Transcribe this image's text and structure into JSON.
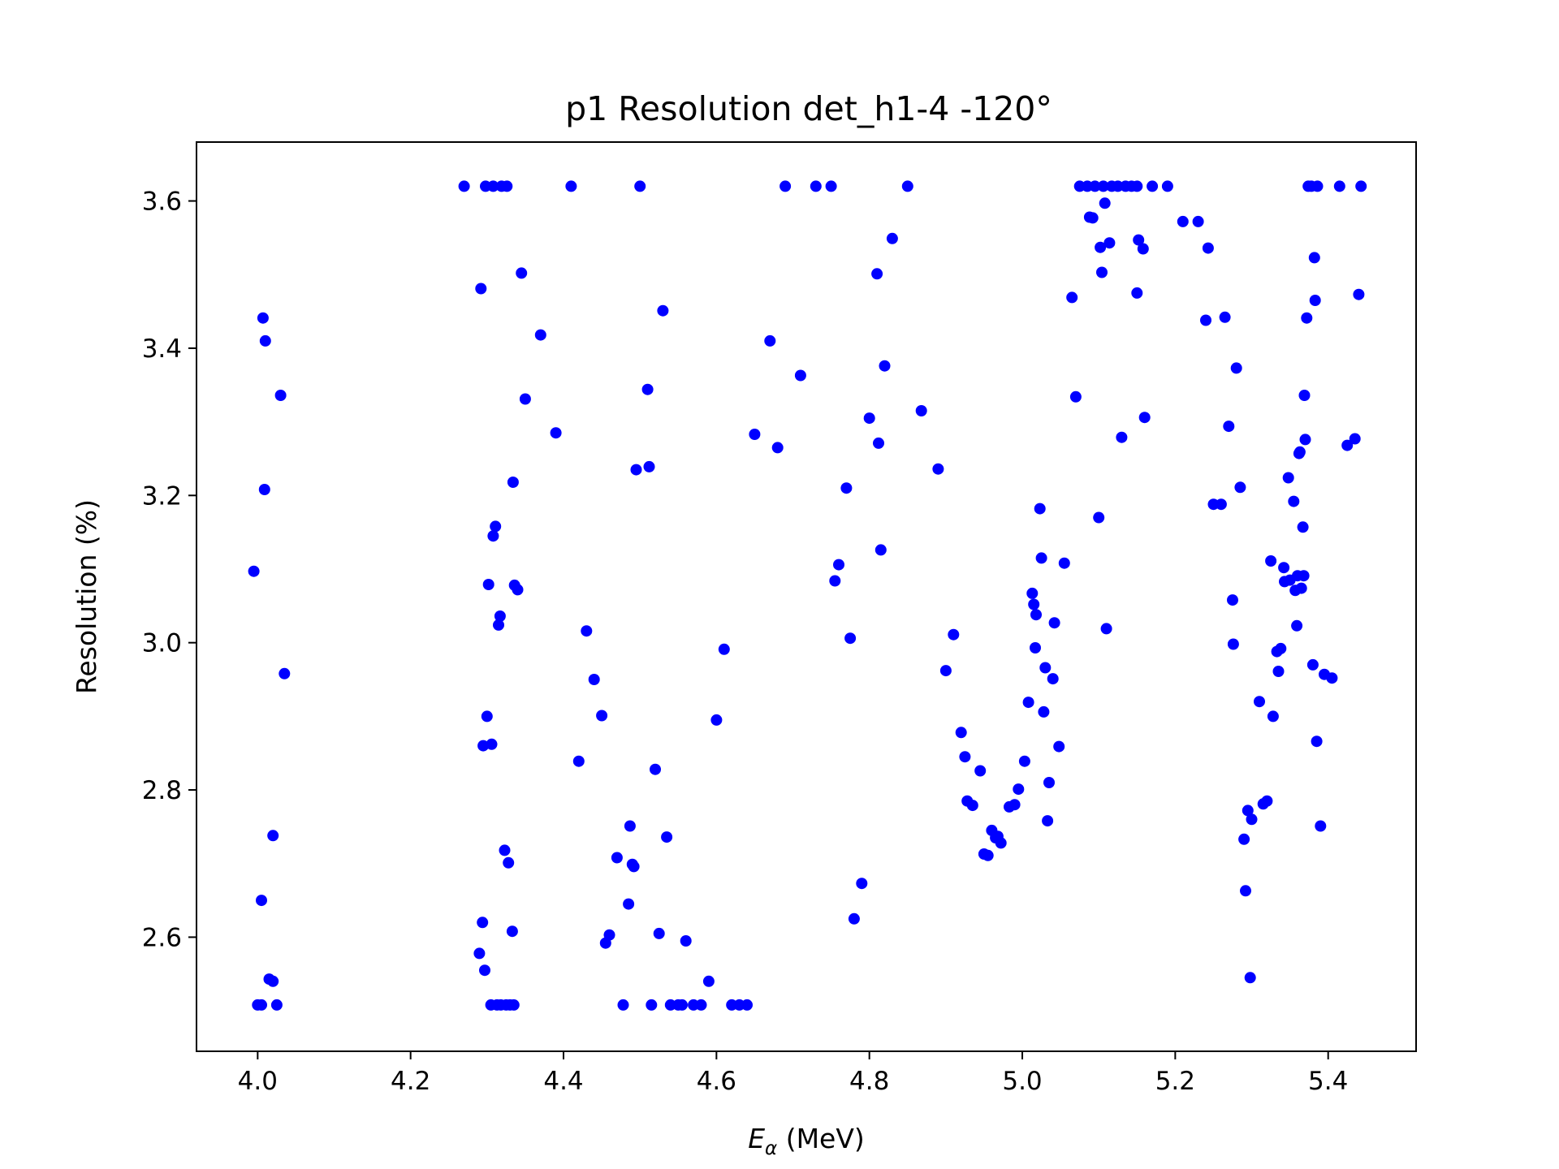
{
  "chart_data": {
    "type": "scatter",
    "title": "p1 Resolution det_h1-4    -120°",
    "xlabel": "E",
    "xlabel_sub": "α",
    "xlabel_unit": " (MeV)",
    "ylabel": "Resolution (%)",
    "xlim": [
      3.92,
      5.515
    ],
    "ylim": [
      2.445,
      3.68
    ],
    "xticks": [
      4.0,
      4.2,
      4.4,
      4.6,
      4.8,
      5.0,
      5.2,
      5.4
    ],
    "xtick_labels": [
      "4.0",
      "4.2",
      "4.4",
      "4.6",
      "4.8",
      "5.0",
      "5.2",
      "5.4"
    ],
    "yticks": [
      2.6,
      2.8,
      3.0,
      3.2,
      3.4,
      3.6
    ],
    "ytick_labels": [
      "2.6",
      "2.8",
      "3.0",
      "3.2",
      "3.4",
      "3.6"
    ],
    "grid": false,
    "marker_color": "#0000ff",
    "series": [
      {
        "points": [
          [
            3.995,
            3.097
          ],
          [
            4.0,
            2.508
          ],
          [
            4.005,
            2.508
          ],
          [
            4.005,
            2.65
          ],
          [
            4.007,
            3.441
          ],
          [
            4.009,
            3.208
          ],
          [
            4.01,
            3.41
          ],
          [
            4.015,
            2.543
          ],
          [
            4.02,
            2.54
          ],
          [
            4.02,
            2.738
          ],
          [
            4.025,
            2.508
          ],
          [
            4.03,
            3.336
          ],
          [
            4.035,
            2.958
          ],
          [
            4.27,
            3.62
          ],
          [
            4.29,
            2.578
          ],
          [
            4.292,
            3.481
          ],
          [
            4.294,
            2.62
          ],
          [
            4.295,
            2.86
          ],
          [
            4.297,
            2.555
          ],
          [
            4.298,
            3.62
          ],
          [
            4.3,
            2.9
          ],
          [
            4.302,
            3.079
          ],
          [
            4.305,
            2.508
          ],
          [
            4.306,
            2.862
          ],
          [
            4.308,
            3.145
          ],
          [
            4.308,
            3.62
          ],
          [
            4.311,
            3.158
          ],
          [
            4.313,
            2.508
          ],
          [
            4.315,
            3.024
          ],
          [
            4.317,
            3.036
          ],
          [
            4.318,
            2.508
          ],
          [
            4.319,
            3.62
          ],
          [
            4.323,
            2.718
          ],
          [
            4.325,
            2.508
          ],
          [
            4.326,
            3.62
          ],
          [
            4.328,
            2.701
          ],
          [
            4.33,
            2.508
          ],
          [
            4.333,
            2.608
          ],
          [
            4.334,
            3.218
          ],
          [
            4.335,
            2.508
          ],
          [
            4.336,
            3.078
          ],
          [
            4.34,
            3.072
          ],
          [
            4.345,
            3.502
          ],
          [
            4.35,
            3.331
          ],
          [
            4.37,
            3.418
          ],
          [
            4.39,
            3.285
          ],
          [
            4.41,
            3.62
          ],
          [
            4.42,
            2.839
          ],
          [
            4.43,
            3.016
          ],
          [
            4.44,
            2.95
          ],
          [
            4.45,
            2.901
          ],
          [
            4.455,
            2.592
          ],
          [
            4.46,
            2.603
          ],
          [
            4.47,
            2.708
          ],
          [
            4.478,
            2.508
          ],
          [
            4.485,
            2.645
          ],
          [
            4.487,
            2.751
          ],
          [
            4.49,
            2.699
          ],
          [
            4.492,
            2.696
          ],
          [
            4.495,
            3.235
          ],
          [
            4.5,
            3.62
          ],
          [
            4.51,
            3.344
          ],
          [
            4.512,
            3.239
          ],
          [
            4.515,
            2.508
          ],
          [
            4.52,
            2.828
          ],
          [
            4.525,
            2.605
          ],
          [
            4.53,
            3.451
          ],
          [
            4.535,
            2.736
          ],
          [
            4.54,
            2.508
          ],
          [
            4.55,
            2.508
          ],
          [
            4.555,
            2.508
          ],
          [
            4.56,
            2.595
          ],
          [
            4.57,
            2.508
          ],
          [
            4.58,
            2.508
          ],
          [
            4.59,
            2.54
          ],
          [
            4.6,
            2.895
          ],
          [
            4.61,
            2.991
          ],
          [
            4.62,
            2.508
          ],
          [
            4.63,
            2.508
          ],
          [
            4.64,
            2.508
          ],
          [
            4.65,
            3.283
          ],
          [
            4.67,
            3.41
          ],
          [
            4.68,
            3.265
          ],
          [
            4.69,
            3.62
          ],
          [
            4.71,
            3.363
          ],
          [
            4.73,
            3.62
          ],
          [
            4.75,
            3.62
          ],
          [
            4.755,
            3.084
          ],
          [
            4.76,
            3.106
          ],
          [
            4.77,
            3.21
          ],
          [
            4.775,
            3.006
          ],
          [
            4.78,
            2.625
          ],
          [
            4.79,
            2.673
          ],
          [
            4.8,
            3.305
          ],
          [
            4.81,
            3.501
          ],
          [
            4.812,
            3.271
          ],
          [
            4.815,
            3.126
          ],
          [
            4.82,
            3.376
          ],
          [
            4.83,
            3.549
          ],
          [
            4.85,
            3.62
          ],
          [
            4.868,
            3.315
          ],
          [
            4.89,
            3.236
          ],
          [
            4.9,
            2.962
          ],
          [
            4.91,
            3.011
          ],
          [
            4.92,
            2.878
          ],
          [
            4.925,
            2.845
          ],
          [
            4.928,
            2.785
          ],
          [
            4.935,
            2.779
          ],
          [
            4.945,
            2.826
          ],
          [
            4.95,
            2.713
          ],
          [
            4.955,
            2.711
          ],
          [
            4.96,
            2.745
          ],
          [
            4.965,
            2.735
          ],
          [
            4.968,
            2.737
          ],
          [
            4.972,
            2.728
          ],
          [
            4.983,
            2.777
          ],
          [
            4.99,
            2.78
          ],
          [
            4.995,
            2.801
          ],
          [
            5.003,
            2.839
          ],
          [
            5.008,
            2.919
          ],
          [
            5.013,
            3.067
          ],
          [
            5.015,
            3.052
          ],
          [
            5.017,
            2.993
          ],
          [
            5.018,
            3.038
          ],
          [
            5.023,
            3.182
          ],
          [
            5.025,
            3.115
          ],
          [
            5.028,
            2.906
          ],
          [
            5.03,
            2.966
          ],
          [
            5.033,
            2.758
          ],
          [
            5.035,
            2.81
          ],
          [
            5.04,
            2.951
          ],
          [
            5.042,
            3.027
          ],
          [
            5.048,
            2.859
          ],
          [
            5.055,
            3.108
          ],
          [
            5.065,
            3.469
          ],
          [
            5.07,
            3.334
          ],
          [
            5.075,
            3.62
          ],
          [
            5.085,
            3.62
          ],
          [
            5.088,
            3.578
          ],
          [
            5.092,
            3.577
          ],
          [
            5.095,
            3.62
          ],
          [
            5.1,
            3.17
          ],
          [
            5.102,
            3.537
          ],
          [
            5.104,
            3.503
          ],
          [
            5.106,
            3.62
          ],
          [
            5.108,
            3.597
          ],
          [
            5.11,
            3.019
          ],
          [
            5.114,
            3.543
          ],
          [
            5.117,
            3.62
          ],
          [
            5.125,
            3.62
          ],
          [
            5.13,
            3.279
          ],
          [
            5.135,
            3.62
          ],
          [
            5.143,
            3.62
          ],
          [
            5.15,
            3.62
          ],
          [
            5.15,
            3.475
          ],
          [
            5.152,
            3.547
          ],
          [
            5.158,
            3.535
          ],
          [
            5.16,
            3.306
          ],
          [
            5.17,
            3.62
          ],
          [
            5.19,
            3.62
          ],
          [
            5.21,
            3.572
          ],
          [
            5.23,
            3.572
          ],
          [
            5.24,
            3.438
          ],
          [
            5.243,
            3.536
          ],
          [
            5.25,
            3.188
          ],
          [
            5.26,
            3.188
          ],
          [
            5.265,
            3.442
          ],
          [
            5.27,
            3.294
          ],
          [
            5.275,
            3.058
          ],
          [
            5.276,
            2.998
          ],
          [
            5.28,
            3.373
          ],
          [
            5.285,
            3.211
          ],
          [
            5.29,
            2.733
          ],
          [
            5.292,
            2.663
          ],
          [
            5.295,
            2.772
          ],
          [
            5.298,
            2.545
          ],
          [
            5.3,
            2.76
          ],
          [
            5.31,
            2.92
          ],
          [
            5.315,
            2.781
          ],
          [
            5.32,
            2.785
          ],
          [
            5.325,
            3.111
          ],
          [
            5.328,
            2.9
          ],
          [
            5.333,
            2.988
          ],
          [
            5.335,
            2.961
          ],
          [
            5.338,
            2.992
          ],
          [
            5.342,
            3.102
          ],
          [
            5.343,
            3.083
          ],
          [
            5.348,
            3.224
          ],
          [
            5.35,
            3.085
          ],
          [
            5.355,
            3.192
          ],
          [
            5.357,
            3.071
          ],
          [
            5.359,
            3.023
          ],
          [
            5.36,
            3.091
          ],
          [
            5.362,
            3.257
          ],
          [
            5.363,
            3.259
          ],
          [
            5.365,
            3.074
          ],
          [
            5.367,
            3.157
          ],
          [
            5.368,
            3.091
          ],
          [
            5.369,
            3.336
          ],
          [
            5.37,
            3.276
          ],
          [
            5.372,
            3.441
          ],
          [
            5.374,
            3.62
          ],
          [
            5.378,
            3.62
          ],
          [
            5.38,
            2.97
          ],
          [
            5.382,
            3.523
          ],
          [
            5.383,
            3.465
          ],
          [
            5.385,
            2.866
          ],
          [
            5.386,
            3.62
          ],
          [
            5.39,
            2.751
          ],
          [
            5.395,
            2.957
          ],
          [
            5.405,
            2.952
          ],
          [
            5.415,
            3.62
          ],
          [
            5.425,
            3.268
          ],
          [
            5.435,
            3.277
          ],
          [
            5.44,
            3.473
          ],
          [
            5.443,
            3.62
          ]
        ]
      }
    ]
  }
}
